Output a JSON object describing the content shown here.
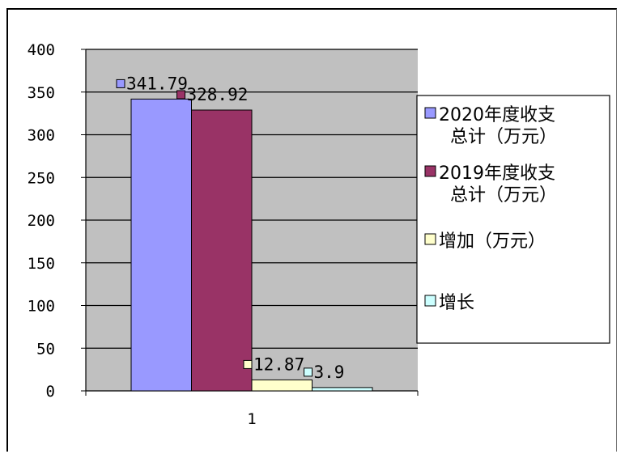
{
  "chart_data": {
    "type": "bar",
    "categories": [
      "1"
    ],
    "series": [
      {
        "name": "2020年度收支总计（万元）",
        "legend_lines": [
          "2020年度收支",
          "总计（万元）"
        ],
        "values": [
          341.79
        ],
        "label": "341.79",
        "color": "#9999ff"
      },
      {
        "name": "2019年度收支总计（万元）",
        "legend_lines": [
          "2019年度收支",
          "总计（万元）"
        ],
        "values": [
          328.92
        ],
        "label": "328.92",
        "color": "#993366"
      },
      {
        "name": "增加（万元）",
        "legend_lines": [
          "增加（万元）"
        ],
        "values": [
          12.87
        ],
        "label": "12.87",
        "color": "#ffffcc"
      },
      {
        "name": "增长",
        "legend_lines": [
          "增长"
        ],
        "values": [
          3.9
        ],
        "label": "3.9",
        "color": "#ccffff"
      }
    ],
    "yticks": [
      "0",
      "50",
      "100",
      "150",
      "200",
      "250",
      "300",
      "350",
      "400"
    ],
    "ylim": [
      0,
      400
    ],
    "grid": true,
    "plot_background": "#c0c0c0",
    "legend_position": "right"
  }
}
